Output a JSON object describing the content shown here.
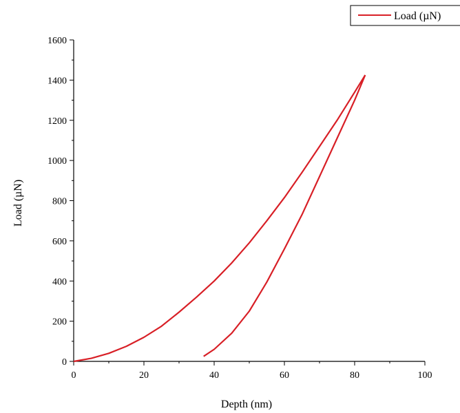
{
  "chart_data": {
    "type": "line",
    "xlabel": "Depth (nm)",
    "ylabel": "Load (µN)",
    "xlim": [
      0,
      100
    ],
    "ylim": [
      0,
      1600
    ],
    "x_ticks": [
      0,
      20,
      40,
      60,
      80,
      100
    ],
    "x_tick_labels": [
      "0",
      "20",
      "40",
      "60",
      "80",
      "100"
    ],
    "y_ticks": [
      0,
      200,
      400,
      600,
      800,
      1000,
      1200,
      1400,
      1600
    ],
    "y_tick_labels": [
      "0",
      "200",
      "400",
      "600",
      "800",
      "1000",
      "1200",
      "1400",
      "1600"
    ],
    "grid": false,
    "legend_position": "top-right",
    "series": [
      {
        "name": "Load (µN)",
        "color": "#d81f26",
        "loading": [
          [
            0,
            0
          ],
          [
            5,
            15
          ],
          [
            10,
            40
          ],
          [
            15,
            75
          ],
          [
            20,
            120
          ],
          [
            25,
            175
          ],
          [
            30,
            245
          ],
          [
            35,
            320
          ],
          [
            40,
            400
          ],
          [
            45,
            490
          ],
          [
            50,
            590
          ],
          [
            55,
            700
          ],
          [
            60,
            815
          ],
          [
            65,
            940
          ],
          [
            70,
            1070
          ],
          [
            75,
            1200
          ],
          [
            80,
            1340
          ],
          [
            83,
            1425
          ]
        ],
        "unloading": [
          [
            83,
            1425
          ],
          [
            80,
            1300
          ],
          [
            75,
            1110
          ],
          [
            70,
            920
          ],
          [
            65,
            730
          ],
          [
            60,
            560
          ],
          [
            55,
            395
          ],
          [
            50,
            250
          ],
          [
            45,
            140
          ],
          [
            40,
            60
          ],
          [
            37,
            25
          ]
        ]
      }
    ]
  }
}
